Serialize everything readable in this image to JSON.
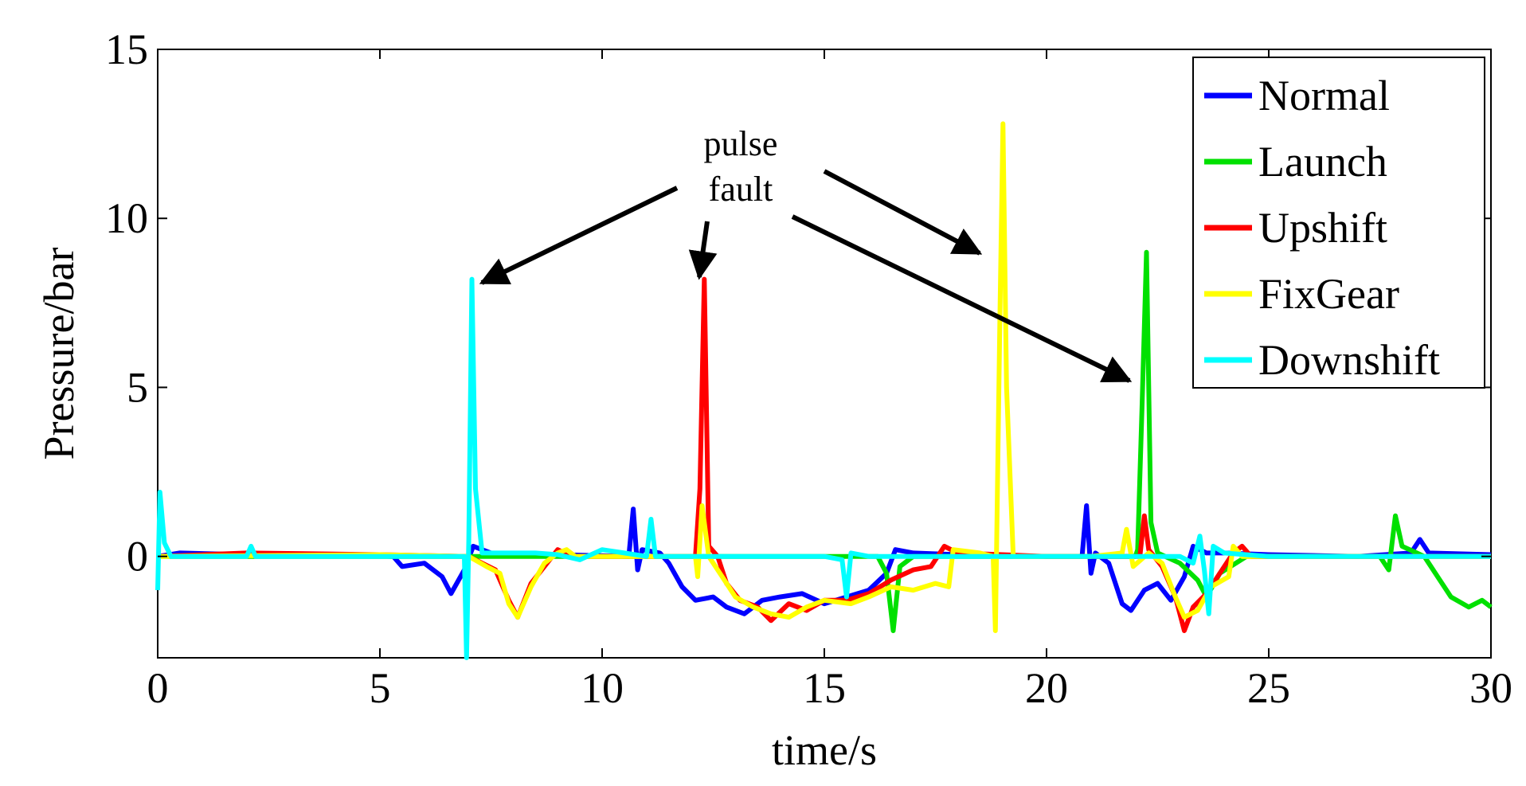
{
  "chart_data": {
    "type": "line",
    "title": "",
    "xlabel": "time/s",
    "ylabel": "Pressure/bar",
    "xlim": [
      0,
      30
    ],
    "ylim": [
      -3,
      15
    ],
    "xticks": [
      0,
      5,
      10,
      15,
      20,
      25,
      30
    ],
    "yticks": [
      0,
      5,
      10,
      15
    ],
    "xtick_labels": [
      "0",
      "5",
      "10",
      "15",
      "20",
      "25",
      "30"
    ],
    "ytick_labels": [
      "0",
      "5",
      "10",
      "15"
    ],
    "grid": false,
    "legend_position": "top-right",
    "annotation": {
      "line1": "pulse",
      "line2": "fault"
    },
    "series": [
      {
        "name": "Normal",
        "color": "#0000ff",
        "points": [
          [
            0,
            0
          ],
          [
            0.5,
            0.1
          ],
          [
            2,
            0.05
          ],
          [
            4,
            0.05
          ],
          [
            5.3,
            0
          ],
          [
            5.5,
            -0.3
          ],
          [
            6,
            -0.2
          ],
          [
            6.4,
            -0.6
          ],
          [
            6.6,
            -1.1
          ],
          [
            6.9,
            -0.4
          ],
          [
            7.1,
            0.3
          ],
          [
            7.3,
            0.2
          ],
          [
            7.5,
            0.1
          ],
          [
            9,
            0.05
          ],
          [
            10.6,
            0
          ],
          [
            10.7,
            1.4
          ],
          [
            10.8,
            -0.4
          ],
          [
            10.9,
            0.2
          ],
          [
            11.3,
            0.1
          ],
          [
            11.5,
            -0.2
          ],
          [
            11.8,
            -0.9
          ],
          [
            12.1,
            -1.3
          ],
          [
            12.5,
            -1.2
          ],
          [
            12.8,
            -1.5
          ],
          [
            13.2,
            -1.7
          ],
          [
            13.6,
            -1.3
          ],
          [
            14,
            -1.2
          ],
          [
            14.5,
            -1.1
          ],
          [
            15,
            -1.4
          ],
          [
            15.5,
            -1.2
          ],
          [
            16,
            -1
          ],
          [
            16.4,
            -0.5
          ],
          [
            16.6,
            0.2
          ],
          [
            17,
            0.1
          ],
          [
            18,
            0.05
          ],
          [
            20,
            0
          ],
          [
            20.8,
            0
          ],
          [
            20.9,
            1.5
          ],
          [
            21,
            -0.5
          ],
          [
            21.1,
            0.1
          ],
          [
            21.4,
            -0.2
          ],
          [
            21.7,
            -1.4
          ],
          [
            21.9,
            -1.6
          ],
          [
            22.2,
            -1
          ],
          [
            22.5,
            -0.8
          ],
          [
            22.8,
            -1.3
          ],
          [
            23.1,
            -0.6
          ],
          [
            23.3,
            0.3
          ],
          [
            23.6,
            0.1
          ],
          [
            24,
            0.1
          ],
          [
            25,
            0.05
          ],
          [
            27,
            0
          ],
          [
            28.2,
            0.1
          ],
          [
            28.4,
            0.5
          ],
          [
            28.6,
            0.1
          ],
          [
            30,
            0.05
          ]
        ]
      },
      {
        "name": "Launch",
        "color": "#00e000",
        "points": [
          [
            0,
            0
          ],
          [
            5,
            0
          ],
          [
            10,
            0
          ],
          [
            15,
            0
          ],
          [
            16.2,
            0
          ],
          [
            16.4,
            -0.5
          ],
          [
            16.55,
            -2.2
          ],
          [
            16.7,
            -0.3
          ],
          [
            17,
            0
          ],
          [
            20,
            0
          ],
          [
            22,
            0
          ],
          [
            22.05,
            0.2
          ],
          [
            22.15,
            4.5
          ],
          [
            22.25,
            9
          ],
          [
            22.35,
            1
          ],
          [
            22.5,
            0.1
          ],
          [
            23,
            -0.2
          ],
          [
            23.4,
            -0.7
          ],
          [
            23.6,
            -1.2
          ],
          [
            23.9,
            -0.5
          ],
          [
            24.5,
            0
          ],
          [
            27.5,
            0
          ],
          [
            27.7,
            -0.4
          ],
          [
            27.85,
            1.2
          ],
          [
            28,
            0.3
          ],
          [
            28.5,
            0
          ],
          [
            28.8,
            -0.6
          ],
          [
            29.1,
            -1.2
          ],
          [
            29.5,
            -1.5
          ],
          [
            29.8,
            -1.3
          ],
          [
            30,
            -1.5
          ]
        ]
      },
      {
        "name": "Upshift",
        "color": "#ff0000",
        "points": [
          [
            0,
            0
          ],
          [
            2,
            0.1
          ],
          [
            5,
            0.05
          ],
          [
            7,
            0
          ],
          [
            7.3,
            -0.2
          ],
          [
            7.6,
            -0.4
          ],
          [
            7.9,
            -1.3
          ],
          [
            8.1,
            -1.8
          ],
          [
            8.4,
            -0.8
          ],
          [
            8.7,
            -0.3
          ],
          [
            9,
            0.2
          ],
          [
            9.3,
            0
          ],
          [
            12.1,
            0
          ],
          [
            12.2,
            2
          ],
          [
            12.3,
            8.2
          ],
          [
            12.4,
            0.3
          ],
          [
            12.6,
            0
          ],
          [
            12.8,
            -0.8
          ],
          [
            13.1,
            -1.3
          ],
          [
            13.5,
            -1.5
          ],
          [
            13.8,
            -1.9
          ],
          [
            14.2,
            -1.4
          ],
          [
            14.6,
            -1.6
          ],
          [
            15,
            -1.3
          ],
          [
            15.5,
            -1.3
          ],
          [
            16,
            -1.1
          ],
          [
            16.5,
            -0.7
          ],
          [
            17,
            -0.4
          ],
          [
            17.4,
            -0.3
          ],
          [
            17.7,
            0.3
          ],
          [
            18,
            0.1
          ],
          [
            20,
            0
          ],
          [
            22.1,
            0
          ],
          [
            22.2,
            1.2
          ],
          [
            22.3,
            0.2
          ],
          [
            22.6,
            -0.3
          ],
          [
            22.9,
            -1.2
          ],
          [
            23.1,
            -2.2
          ],
          [
            23.3,
            -1.5
          ],
          [
            23.6,
            -1.1
          ],
          [
            23.9,
            -0.5
          ],
          [
            24.2,
            0.1
          ],
          [
            24.4,
            0.3
          ],
          [
            24.6,
            0
          ],
          [
            30,
            0
          ]
        ]
      },
      {
        "name": "FixGear",
        "color": "#ffff00",
        "points": [
          [
            0,
            0
          ],
          [
            5,
            0.05
          ],
          [
            7,
            0
          ],
          [
            7.4,
            -0.3
          ],
          [
            7.7,
            -0.5
          ],
          [
            7.9,
            -1.4
          ],
          [
            8.1,
            -1.8
          ],
          [
            8.4,
            -0.9
          ],
          [
            8.7,
            -0.2
          ],
          [
            9,
            0.1
          ],
          [
            9.2,
            0.2
          ],
          [
            9.4,
            0
          ],
          [
            12.1,
            0
          ],
          [
            12.15,
            -0.6
          ],
          [
            12.25,
            1.5
          ],
          [
            12.4,
            0
          ],
          [
            12.7,
            -0.6
          ],
          [
            13,
            -1.2
          ],
          [
            13.4,
            -1.5
          ],
          [
            13.8,
            -1.7
          ],
          [
            14.2,
            -1.8
          ],
          [
            14.6,
            -1.5
          ],
          [
            15,
            -1.3
          ],
          [
            15.6,
            -1.4
          ],
          [
            16,
            -1.2
          ],
          [
            16.5,
            -0.9
          ],
          [
            17,
            -1
          ],
          [
            17.5,
            -0.8
          ],
          [
            17.8,
            -0.9
          ],
          [
            17.9,
            0.2
          ],
          [
            18.5,
            0.1
          ],
          [
            18.8,
            0
          ],
          [
            18.85,
            -2.2
          ],
          [
            18.95,
            7
          ],
          [
            19.02,
            12.8
          ],
          [
            19.1,
            5
          ],
          [
            19.25,
            0
          ],
          [
            21,
            0
          ],
          [
            21.7,
            0.1
          ],
          [
            21.8,
            0.8
          ],
          [
            21.95,
            -0.3
          ],
          [
            22.3,
            0.1
          ],
          [
            22.6,
            -0.2
          ],
          [
            22.9,
            -1.2
          ],
          [
            23.1,
            -1.8
          ],
          [
            23.4,
            -1.6
          ],
          [
            23.7,
            -0.9
          ],
          [
            24.1,
            -0.6
          ],
          [
            24.2,
            0.3
          ],
          [
            24.4,
            0
          ],
          [
            30,
            0
          ]
        ]
      },
      {
        "name": "Downshift",
        "color": "#00ffff",
        "points": [
          [
            0,
            -1
          ],
          [
            0.05,
            1.9
          ],
          [
            0.15,
            0.4
          ],
          [
            0.3,
            0
          ],
          [
            2,
            0
          ],
          [
            2.1,
            0.3
          ],
          [
            2.2,
            0
          ],
          [
            5,
            0
          ],
          [
            6.9,
            0
          ],
          [
            6.95,
            -3
          ],
          [
            7,
            0.5
          ],
          [
            7.07,
            8.2
          ],
          [
            7.15,
            2
          ],
          [
            7.3,
            0.1
          ],
          [
            8.5,
            0.1
          ],
          [
            9,
            0.05
          ],
          [
            9.5,
            -0.1
          ],
          [
            10,
            0.2
          ],
          [
            10.5,
            0.1
          ],
          [
            11,
            0
          ],
          [
            11.1,
            1.1
          ],
          [
            11.2,
            0
          ],
          [
            12,
            0
          ],
          [
            13,
            0
          ],
          [
            14,
            0
          ],
          [
            15,
            0
          ],
          [
            15.4,
            -0.1
          ],
          [
            15.5,
            -1.2
          ],
          [
            15.6,
            0.1
          ],
          [
            16,
            0
          ],
          [
            20,
            0
          ],
          [
            22,
            0
          ],
          [
            23,
            0
          ],
          [
            23.3,
            -0.2
          ],
          [
            23.45,
            0.6
          ],
          [
            23.55,
            -0.4
          ],
          [
            23.65,
            -1.7
          ],
          [
            23.75,
            0.3
          ],
          [
            24,
            0.1
          ],
          [
            25,
            0
          ],
          [
            30,
            0
          ]
        ]
      }
    ]
  }
}
